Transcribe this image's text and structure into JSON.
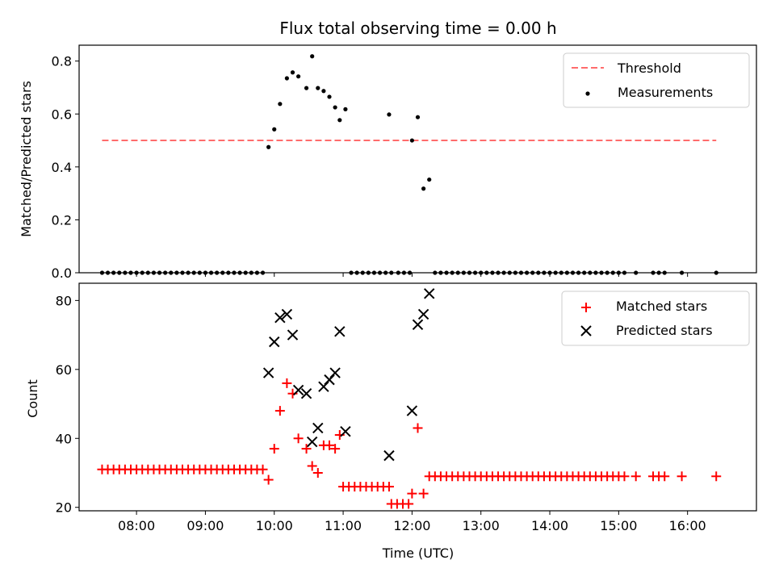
{
  "chart_data": [
    {
      "type": "scatter",
      "title": "Flux total observing time = 0.00 h",
      "xlabel": "",
      "ylabel": "Matched/Predicted stars",
      "ylim": [
        0,
        0.86
      ],
      "xlim": [
        "07:10",
        "17:00"
      ],
      "yticks": [
        "0.0",
        "0.2",
        "0.4",
        "0.6",
        "0.8"
      ],
      "legend": {
        "position": "top-right",
        "entries": [
          "Threshold",
          "Measurements"
        ]
      },
      "colors": {
        "threshold": "#ff6b6b",
        "measurements": "#000000"
      },
      "threshold": {
        "name": "Threshold",
        "y": 0.5,
        "x": [
          "07:30",
          "16:25"
        ]
      },
      "series": [
        {
          "name": "Measurements",
          "points": [
            [
              "07:30",
              0
            ],
            [
              "07:35",
              0
            ],
            [
              "07:40",
              0
            ],
            [
              "07:45",
              0
            ],
            [
              "07:50",
              0
            ],
            [
              "07:55",
              0
            ],
            [
              "08:00",
              0
            ],
            [
              "08:05",
              0
            ],
            [
              "08:10",
              0
            ],
            [
              "08:15",
              0
            ],
            [
              "08:20",
              0
            ],
            [
              "08:25",
              0
            ],
            [
              "08:30",
              0
            ],
            [
              "08:35",
              0
            ],
            [
              "08:40",
              0
            ],
            [
              "08:45",
              0
            ],
            [
              "08:50",
              0
            ],
            [
              "08:55",
              0
            ],
            [
              "09:00",
              0
            ],
            [
              "09:05",
              0
            ],
            [
              "09:10",
              0
            ],
            [
              "09:15",
              0
            ],
            [
              "09:20",
              0
            ],
            [
              "09:25",
              0
            ],
            [
              "09:30",
              0
            ],
            [
              "09:35",
              0
            ],
            [
              "09:40",
              0
            ],
            [
              "09:45",
              0
            ],
            [
              "09:50",
              0
            ],
            [
              "09:55",
              0.475
            ],
            [
              "10:00",
              0.542
            ],
            [
              "10:05",
              0.638
            ],
            [
              "10:11",
              0.735
            ],
            [
              "10:16",
              0.757
            ],
            [
              "10:21",
              0.742
            ],
            [
              "10:28",
              0.698
            ],
            [
              "10:33",
              0.818
            ],
            [
              "10:38",
              0.698
            ],
            [
              "10:43",
              0.687
            ],
            [
              "10:48",
              0.665
            ],
            [
              "10:53",
              0.625
            ],
            [
              "10:57",
              0.577
            ],
            [
              "11:02",
              0.618
            ],
            [
              "11:07",
              0
            ],
            [
              "11:12",
              0
            ],
            [
              "11:17",
              0
            ],
            [
              "11:22",
              0
            ],
            [
              "11:27",
              0
            ],
            [
              "11:32",
              0
            ],
            [
              "11:37",
              0
            ],
            [
              "11:42",
              0
            ],
            [
              "11:40",
              0.598
            ],
            [
              "11:48",
              0
            ],
            [
              "11:53",
              0
            ],
            [
              "11:58",
              0
            ],
            [
              "12:00",
              0.5
            ],
            [
              "12:05",
              0.588
            ],
            [
              "12:10",
              0.318
            ],
            [
              "12:15",
              0.352
            ],
            [
              "12:20",
              0
            ],
            [
              "12:25",
              0
            ],
            [
              "12:30",
              0
            ],
            [
              "12:35",
              0
            ],
            [
              "12:40",
              0
            ],
            [
              "12:45",
              0
            ],
            [
              "12:50",
              0
            ],
            [
              "12:55",
              0
            ],
            [
              "13:00",
              0
            ],
            [
              "13:05",
              0
            ],
            [
              "13:10",
              0
            ],
            [
              "13:15",
              0
            ],
            [
              "13:20",
              0
            ],
            [
              "13:25",
              0
            ],
            [
              "13:30",
              0
            ],
            [
              "13:35",
              0
            ],
            [
              "13:40",
              0
            ],
            [
              "13:45",
              0
            ],
            [
              "13:50",
              0
            ],
            [
              "13:55",
              0
            ],
            [
              "14:00",
              0
            ],
            [
              "14:05",
              0
            ],
            [
              "14:10",
              0
            ],
            [
              "14:15",
              0
            ],
            [
              "14:20",
              0
            ],
            [
              "14:25",
              0
            ],
            [
              "14:30",
              0
            ],
            [
              "14:35",
              0
            ],
            [
              "14:40",
              0
            ],
            [
              "14:45",
              0
            ],
            [
              "14:50",
              0
            ],
            [
              "14:55",
              0
            ],
            [
              "15:00",
              0
            ],
            [
              "15:05",
              0
            ],
            [
              "15:15",
              0
            ],
            [
              "15:30",
              0
            ],
            [
              "15:35",
              0
            ],
            [
              "15:40",
              0
            ],
            [
              "15:55",
              0
            ],
            [
              "16:25",
              0
            ]
          ]
        }
      ]
    },
    {
      "type": "scatter",
      "title": "",
      "xlabel": "Time (UTC)",
      "ylabel": "Count",
      "ylim": [
        19,
        85
      ],
      "xlim": [
        "07:10",
        "17:00"
      ],
      "xticks": [
        "08:00",
        "09:00",
        "10:00",
        "11:00",
        "12:00",
        "13:00",
        "14:00",
        "15:00",
        "16:00"
      ],
      "yticks": [
        "20",
        "40",
        "60",
        "80"
      ],
      "legend": {
        "position": "top-right",
        "entries": [
          "Matched stars",
          "Predicted stars"
        ]
      },
      "colors": {
        "matched": "#ff0000",
        "predicted": "#000000"
      },
      "series": [
        {
          "name": "Matched stars",
          "marker": "plus",
          "points": [
            [
              "07:30",
              31
            ],
            [
              "07:35",
              31
            ],
            [
              "07:40",
              31
            ],
            [
              "07:45",
              31
            ],
            [
              "07:50",
              31
            ],
            [
              "07:55",
              31
            ],
            [
              "08:00",
              31
            ],
            [
              "08:05",
              31
            ],
            [
              "08:10",
              31
            ],
            [
              "08:15",
              31
            ],
            [
              "08:20",
              31
            ],
            [
              "08:25",
              31
            ],
            [
              "08:30",
              31
            ],
            [
              "08:35",
              31
            ],
            [
              "08:40",
              31
            ],
            [
              "08:45",
              31
            ],
            [
              "08:50",
              31
            ],
            [
              "08:55",
              31
            ],
            [
              "09:00",
              31
            ],
            [
              "09:05",
              31
            ],
            [
              "09:10",
              31
            ],
            [
              "09:15",
              31
            ],
            [
              "09:20",
              31
            ],
            [
              "09:25",
              31
            ],
            [
              "09:30",
              31
            ],
            [
              "09:35",
              31
            ],
            [
              "09:40",
              31
            ],
            [
              "09:45",
              31
            ],
            [
              "09:50",
              31
            ],
            [
              "09:55",
              28
            ],
            [
              "10:00",
              37
            ],
            [
              "10:05",
              48
            ],
            [
              "10:11",
              56
            ],
            [
              "10:16",
              53
            ],
            [
              "10:21",
              40
            ],
            [
              "10:28",
              37
            ],
            [
              "10:33",
              32
            ],
            [
              "10:38",
              30
            ],
            [
              "10:43",
              38
            ],
            [
              "10:48",
              38
            ],
            [
              "10:53",
              37
            ],
            [
              "10:57",
              41
            ],
            [
              "11:00",
              26
            ],
            [
              "11:05",
              26
            ],
            [
              "11:10",
              26
            ],
            [
              "11:15",
              26
            ],
            [
              "11:20",
              26
            ],
            [
              "11:25",
              26
            ],
            [
              "11:30",
              26
            ],
            [
              "11:35",
              26
            ],
            [
              "11:40",
              26
            ],
            [
              "11:42",
              21
            ],
            [
              "11:47",
              21
            ],
            [
              "11:52",
              21
            ],
            [
              "11:57",
              21
            ],
            [
              "12:00",
              24
            ],
            [
              "12:05",
              43
            ],
            [
              "12:10",
              24
            ],
            [
              "12:15",
              29
            ],
            [
              "12:20",
              29
            ],
            [
              "12:25",
              29
            ],
            [
              "12:30",
              29
            ],
            [
              "12:35",
              29
            ],
            [
              "12:40",
              29
            ],
            [
              "12:45",
              29
            ],
            [
              "12:50",
              29
            ],
            [
              "12:55",
              29
            ],
            [
              "13:00",
              29
            ],
            [
              "13:05",
              29
            ],
            [
              "13:10",
              29
            ],
            [
              "13:15",
              29
            ],
            [
              "13:20",
              29
            ],
            [
              "13:25",
              29
            ],
            [
              "13:30",
              29
            ],
            [
              "13:35",
              29
            ],
            [
              "13:40",
              29
            ],
            [
              "13:45",
              29
            ],
            [
              "13:50",
              29
            ],
            [
              "13:55",
              29
            ],
            [
              "14:00",
              29
            ],
            [
              "14:05",
              29
            ],
            [
              "14:10",
              29
            ],
            [
              "14:15",
              29
            ],
            [
              "14:20",
              29
            ],
            [
              "14:25",
              29
            ],
            [
              "14:30",
              29
            ],
            [
              "14:35",
              29
            ],
            [
              "14:40",
              29
            ],
            [
              "14:45",
              29
            ],
            [
              "14:50",
              29
            ],
            [
              "14:55",
              29
            ],
            [
              "15:00",
              29
            ],
            [
              "15:05",
              29
            ],
            [
              "15:15",
              29
            ],
            [
              "15:30",
              29
            ],
            [
              "15:35",
              29
            ],
            [
              "15:40",
              29
            ],
            [
              "15:55",
              29
            ],
            [
              "16:25",
              29
            ]
          ]
        },
        {
          "name": "Predicted stars",
          "marker": "x",
          "points": [
            [
              "09:55",
              59
            ],
            [
              "10:00",
              68
            ],
            [
              "10:05",
              75
            ],
            [
              "10:11",
              76
            ],
            [
              "10:16",
              70
            ],
            [
              "10:21",
              54
            ],
            [
              "10:28",
              53
            ],
            [
              "10:33",
              39
            ],
            [
              "10:38",
              43
            ],
            [
              "10:43",
              55
            ],
            [
              "10:48",
              57
            ],
            [
              "10:53",
              59
            ],
            [
              "10:57",
              71
            ],
            [
              "11:02",
              42
            ],
            [
              "11:40",
              35
            ],
            [
              "12:00",
              48
            ],
            [
              "12:05",
              73
            ],
            [
              "12:10",
              76
            ],
            [
              "12:15",
              82
            ]
          ]
        }
      ]
    }
  ]
}
